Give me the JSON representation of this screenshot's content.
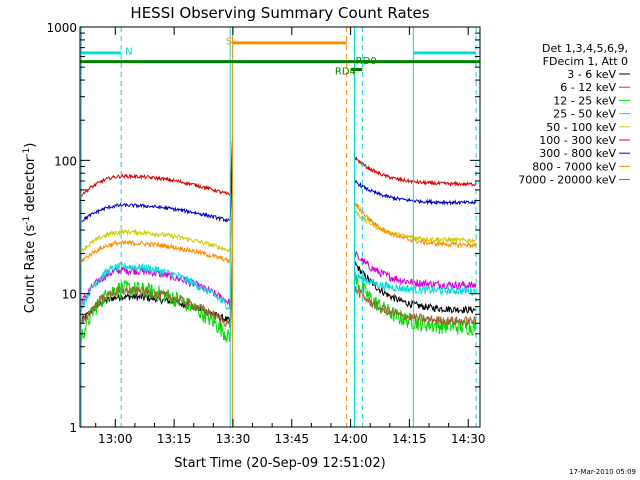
{
  "chart_data": {
    "type": "line",
    "title": "HESSI Observing Summary Count Rates",
    "xlabel": "Start Time (20-Sep-09 12:51:02)",
    "ylabel_main": "Count Rate (s",
    "ylabel_sup1": "-1",
    "ylabel_mid": " detector",
    "ylabel_sup2": "-1",
    "ylabel_end": ")",
    "ylog": true,
    "xlim": [
      771,
      873
    ],
    "ylim": [
      1,
      1000
    ],
    "xticks": [
      {
        "v": 780,
        "label": "13:00"
      },
      {
        "v": 795,
        "label": "13:15"
      },
      {
        "v": 810,
        "label": "13:30"
      },
      {
        "v": 825,
        "label": "13:45"
      },
      {
        "v": 840,
        "label": "14:00"
      },
      {
        "v": 855,
        "label": "14:15"
      },
      {
        "v": 870,
        "label": "14:30"
      }
    ],
    "yticks": [
      {
        "v": 1,
        "label": "1"
      },
      {
        "v": 10,
        "label": "10"
      },
      {
        "v": 100,
        "label": "100"
      },
      {
        "v": 1000,
        "label": "1000"
      }
    ],
    "legend": {
      "placement": "right",
      "header": [
        "Det 1,3,4,5,6,9,",
        "FDecim 1, Att 0"
      ],
      "entries": [
        {
          "label": "3 - 6 keV",
          "color": "#000000"
        },
        {
          "label": "6 - 12 keV",
          "color": "#dd00dd"
        },
        {
          "label": "12 - 25 keV",
          "color": "#00dd00"
        },
        {
          "label": "25 - 50 keV",
          "color": "#00dddd"
        },
        {
          "label": "50 - 100 keV",
          "color": "#cccc00"
        },
        {
          "label": "100 - 300 keV",
          "color": "#dd0000"
        },
        {
          "label": "300 - 800 keV",
          "color": "#0000cc"
        },
        {
          "label": "800 - 7000 keV",
          "color": "#ff8c00"
        },
        {
          "label": "7000 - 20000 keV",
          "color": "#996633"
        }
      ]
    },
    "night_intervals": [
      [
        771,
        781.5
      ],
      [
        856,
        872
      ]
    ],
    "saa_intervals": [
      [
        809.9,
        839
      ]
    ],
    "vlines": [
      {
        "x": 771.3,
        "color": "#00dddd",
        "dash": false
      },
      {
        "x": 781.5,
        "color": "#00dddd",
        "dash": true
      },
      {
        "x": 809.3,
        "color": "#00dddd",
        "dash": false
      },
      {
        "x": 809.9,
        "color": "#ff8c00",
        "dash": false
      },
      {
        "x": 839.0,
        "color": "#ff8c00",
        "dash": true
      },
      {
        "x": 841.0,
        "color": "#00dddd",
        "dash": false
      },
      {
        "x": 843.0,
        "color": "#00dddd",
        "dash": true
      },
      {
        "x": 856.0,
        "color": "#00dddd",
        "dash": false
      },
      {
        "x": 872.0,
        "color": "#00dddd",
        "dash": true
      }
    ],
    "flag_bars": [
      {
        "x": [
          771,
          781.5
        ],
        "y": 640,
        "color": "#00dddd"
      },
      {
        "x": [
          856,
          872
        ],
        "y": 640,
        "color": "#00dddd"
      },
      {
        "x": [
          810,
          839
        ],
        "y": 760,
        "color": "#ff8c00"
      },
      {
        "x": [
          771,
          873
        ],
        "y": 550,
        "color": "#008000"
      },
      {
        "x": [
          840,
          843
        ],
        "y": 480,
        "color": "#008000"
      }
    ],
    "flag_labels": [
      {
        "text": "N",
        "x": 782.5,
        "y": 620,
        "color": "#00dddd"
      },
      {
        "text": "S",
        "x": 808.2,
        "y": 740,
        "color": "#ff8c00"
      },
      {
        "text": "RD4",
        "x": 836.0,
        "y": 440,
        "color": "#008000"
      },
      {
        "text": "RD0",
        "x": 841.3,
        "y": 530,
        "color": "#008000"
      }
    ],
    "series": [
      {
        "name": "3 - 6 keV",
        "color": "#000000",
        "mode": "low",
        "pre_base": 6.2,
        "pre_peak": 9.5,
        "post_start": 17,
        "post_end": 7.5,
        "noise": 0.06
      },
      {
        "name": "6 - 12 keV",
        "color": "#dd00dd",
        "mode": "low",
        "pre_base": 8.5,
        "pre_peak": 15,
        "post_start": 20,
        "post_end": 11.5,
        "noise": 0.07
      },
      {
        "name": "12 - 25 keV",
        "color": "#00dd00",
        "mode": "low",
        "pre_base": 4.6,
        "pre_peak": 11,
        "post_start": 13,
        "post_end": 5.6,
        "noise": 0.14
      },
      {
        "name": "25 - 50 keV",
        "color": "#00dddd",
        "mode": "low",
        "pre_base": 7.8,
        "pre_peak": 16,
        "post_start": 14,
        "post_end": 10.5,
        "noise": 0.07
      },
      {
        "name": "50 - 100 keV",
        "color": "#cccc00",
        "mode": "high",
        "pre_base": 21,
        "pre_peak": 29,
        "post_start": 42,
        "post_end": 25,
        "noise": 0.04
      },
      {
        "name": "100 - 300 keV",
        "color": "#dd0000",
        "mode": "high",
        "pre_base": 55,
        "pre_peak": 76,
        "post_start": 105,
        "post_end": 66,
        "noise": 0.03
      },
      {
        "name": "300 - 800 keV",
        "color": "#0000cc",
        "mode": "high",
        "pre_base": 35,
        "pre_peak": 46,
        "post_start": 70,
        "post_end": 48,
        "noise": 0.03
      },
      {
        "name": "800 - 7000 keV",
        "color": "#ff8c00",
        "mode": "high",
        "pre_base": 17.5,
        "pre_peak": 24,
        "post_start": 48,
        "post_end": 23,
        "noise": 0.04
      },
      {
        "name": "7000 - 20000 keV",
        "color": "#996633",
        "mode": "low",
        "pre_base": 5.8,
        "pre_peak": 10.5,
        "post_start": 11,
        "post_end": 6.2,
        "noise": 0.08
      }
    ],
    "curve_x": {
      "start": 771.3,
      "peak": 782,
      "pre_end": 809.3,
      "post_start": 841,
      "end": 872
    }
  },
  "footer": {
    "date": "17-Mar-2010 05:09"
  }
}
